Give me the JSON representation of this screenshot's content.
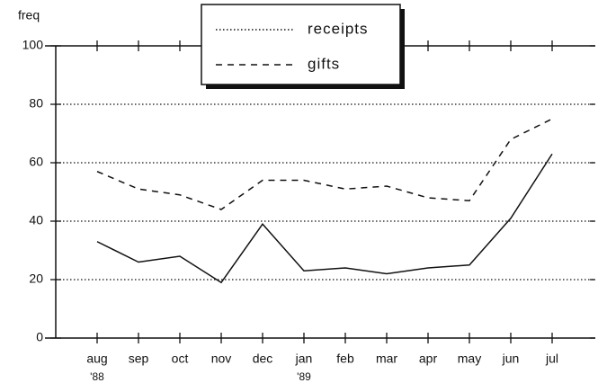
{
  "chart_data": {
    "type": "line",
    "ylabel": "freq",
    "categories": [
      "aug",
      "sep",
      "oct",
      "nov",
      "dec",
      "jan",
      "feb",
      "mar",
      "apr",
      "may",
      "jun",
      "jul"
    ],
    "year_labels": [
      "'88",
      null,
      null,
      null,
      null,
      "'89",
      null,
      null,
      null,
      null,
      null,
      null
    ],
    "series": [
      {
        "name": "receipts",
        "color": "#111",
        "dash": "none",
        "legend_dash": "1.5,2.5",
        "values": [
          33,
          26,
          28,
          19,
          39,
          23,
          24,
          22,
          24,
          25,
          41,
          63
        ]
      },
      {
        "name": "gifts",
        "color": "#111",
        "dash": "7,6",
        "legend_dash": "7,6",
        "values": [
          57,
          51,
          49,
          44,
          54,
          54,
          51,
          52,
          48,
          47,
          68,
          75
        ]
      }
    ],
    "ylim": [
      0,
      100
    ],
    "yticks": [
      0,
      20,
      40,
      60,
      80,
      100
    ],
    "grid": true
  }
}
